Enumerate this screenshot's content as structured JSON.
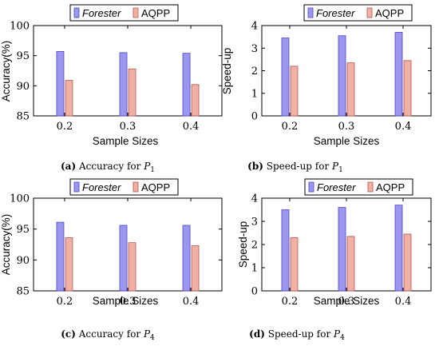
{
  "legend": {
    "forester": "Forester",
    "aqpp": "AQPP"
  },
  "colors": {
    "forester": "#9b97ee",
    "forester_stroke": "#4a44c8",
    "aqpp": "#f0b0a6",
    "aqpp_stroke": "#b0584e"
  },
  "chart_data": [
    {
      "type": "bar",
      "categories": [
        "0.2",
        "0.3",
        "0.4"
      ],
      "series": [
        {
          "name": "Forester",
          "values": [
            95.7,
            95.5,
            95.4
          ]
        },
        {
          "name": "AQPP",
          "values": [
            90.9,
            92.8,
            90.2
          ]
        }
      ],
      "xlabel": "Sample Sizes",
      "ylabel": "Accuracy(%)",
      "ylim": [
        85,
        100
      ],
      "yticks": [
        "85",
        "90",
        "95",
        "100"
      ],
      "caption_label": "(a)",
      "caption_text": "Accuracy for ",
      "caption_var": "P",
      "caption_sub": "1"
    },
    {
      "type": "bar",
      "categories": [
        "0.2",
        "0.3",
        "0.4"
      ],
      "series": [
        {
          "name": "Forester",
          "values": [
            3.45,
            3.55,
            3.7
          ]
        },
        {
          "name": "AQPP",
          "values": [
            2.2,
            2.35,
            2.45
          ]
        }
      ],
      "xlabel": "Sample Sizes",
      "ylabel": "Speed-up",
      "ylim": [
        0,
        4
      ],
      "yticks": [
        "0",
        "1",
        "2",
        "3",
        "4"
      ],
      "caption_label": "(b)",
      "caption_text": "Speed-up for ",
      "caption_var": "P",
      "caption_sub": "1"
    },
    {
      "type": "bar",
      "categories": [
        "0.2",
        "0.3",
        "0.4"
      ],
      "series": [
        {
          "name": "Forester",
          "values": [
            96.1,
            95.6,
            95.6
          ]
        },
        {
          "name": "AQPP",
          "values": [
            93.6,
            92.8,
            92.3
          ]
        }
      ],
      "xlabel": "Sample Sizes",
      "ylabel": "Accuracy(%)",
      "ylim": [
        85,
        100
      ],
      "yticks": [
        "85",
        "90",
        "95",
        "100"
      ],
      "caption_label": "(c)",
      "caption_text": "Accuracy for ",
      "caption_var": "P",
      "caption_sub": "4"
    },
    {
      "type": "bar",
      "categories": [
        "0.2",
        "0.3",
        "0.4"
      ],
      "series": [
        {
          "name": "Forester",
          "values": [
            3.5,
            3.6,
            3.7
          ]
        },
        {
          "name": "AQPP",
          "values": [
            2.3,
            2.35,
            2.45
          ]
        }
      ],
      "xlabel": "Sample Sizes",
      "ylabel": "Speed-up",
      "ylim": [
        0,
        4
      ],
      "yticks": [
        "0",
        "1",
        "2",
        "3",
        "4"
      ],
      "caption_label": "(d)",
      "caption_text": "Speed-up for ",
      "caption_var": "P",
      "caption_sub": "4"
    }
  ]
}
